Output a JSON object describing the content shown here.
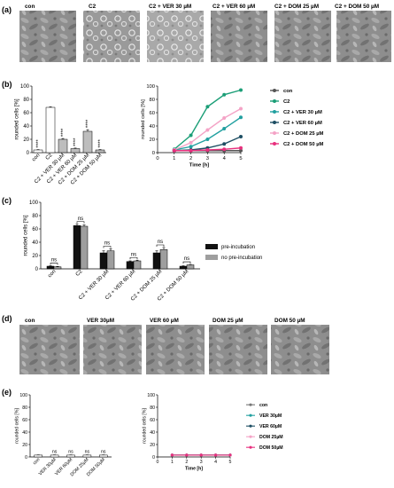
{
  "figure": {
    "panels": {
      "a": {
        "tag": "(a)",
        "captions": [
          "con",
          "C2",
          "C2 + VER 30 µM",
          "C2 + VER 60 µM",
          "C2 + DOM 25 µM",
          "C2 + DOM 50 µM"
        ]
      },
      "b": {
        "tag": "(b)"
      },
      "c": {
        "tag": "(c)"
      },
      "d": {
        "tag": "(d)",
        "captions": [
          "con",
          "VER 30µM",
          "VER 60 µM",
          "DOM 25 µM",
          "DOM 50 µM"
        ]
      },
      "e": {
        "tag": "(e)"
      }
    }
  },
  "chart_data": [
    {
      "id": "b-bar",
      "type": "bar",
      "ylabel": "rounded cells [%]",
      "ylim": [
        0,
        100
      ],
      "yticks": [
        0,
        20,
        40,
        60,
        80,
        100
      ],
      "categories": [
        "con",
        "C2",
        "C2 + VER 30 µM",
        "C2 + VER 60 µM",
        "C2 + DOM 25 µM",
        "C2 + DOM 50 µM"
      ],
      "values": [
        4,
        68,
        20,
        6,
        32,
        4
      ],
      "errors": [
        0.5,
        0.8,
        1.2,
        0.8,
        2.5,
        0.6
      ],
      "colors": [
        "#ffffff",
        "#ffffff",
        "#bdbdbd",
        "#bdbdbd",
        "#bdbdbd",
        "#bdbdbd"
      ],
      "significance": [
        "****",
        "",
        "****",
        "****",
        "****",
        "****"
      ]
    },
    {
      "id": "b-line",
      "type": "line",
      "xlabel": "Time [h]",
      "ylabel": "rounded cells [%]",
      "xlim": [
        0,
        5
      ],
      "xticks": [
        0,
        1,
        2,
        3,
        4,
        5
      ],
      "ylim": [
        0,
        100
      ],
      "yticks": [
        0,
        20,
        40,
        60,
        80,
        100
      ],
      "x": [
        1,
        2,
        3,
        4,
        5
      ],
      "series": [
        {
          "name": "con",
          "color": "#555555",
          "values": [
            3,
            3,
            3,
            3,
            3
          ]
        },
        {
          "name": "C2",
          "color": "#1b9e77",
          "values": [
            5,
            26,
            69,
            87,
            94
          ]
        },
        {
          "name": "C2 + VER 30 µM",
          "color": "#21a0a0",
          "values": [
            4,
            9,
            20,
            36,
            53
          ]
        },
        {
          "name": "C2 + VER 60 µM",
          "color": "#1d4e63",
          "values": [
            3,
            4,
            7,
            13,
            24
          ]
        },
        {
          "name": "C2 + DOM 25 µM",
          "color": "#f4a3c6",
          "values": [
            4,
            15,
            34,
            52,
            66
          ]
        },
        {
          "name": "C2 + DOM 50 µM",
          "color": "#e8307e",
          "values": [
            3,
            3,
            4,
            5,
            7
          ]
        }
      ]
    },
    {
      "id": "c-bar",
      "type": "bar",
      "ylabel": "rounded cells [%]",
      "ylim": [
        0,
        100
      ],
      "yticks": [
        0,
        20,
        40,
        60,
        80,
        100
      ],
      "categories": [
        "con",
        "C2",
        "C2 + VER 30 µM",
        "C2 + VER 60 µM",
        "C2 + DOM 25 µM",
        "C2 + DOM 50 µM"
      ],
      "series": [
        {
          "name": "pre-incubation",
          "color": "#111111",
          "values": [
            4,
            65,
            24,
            11,
            24,
            4
          ],
          "errors": [
            0.6,
            2,
            3,
            1,
            3,
            0.6
          ]
        },
        {
          "name": "no pre-incubation",
          "color": "#9e9e9e",
          "values": [
            3,
            64,
            27,
            12,
            29,
            6
          ],
          "errors": [
            0.6,
            2,
            3,
            1,
            3,
            0.6
          ]
        }
      ],
      "significance": [
        "ns",
        "ns",
        "ns",
        "ns",
        "ns",
        "ns"
      ]
    },
    {
      "id": "e-bar",
      "type": "bar",
      "ylabel": "rounded cells [%]",
      "ylim": [
        0,
        100
      ],
      "yticks": [
        0,
        20,
        40,
        60,
        80,
        100
      ],
      "categories": [
        "con",
        "VER 30µM",
        "VER 60µM",
        "DOM 25µM",
        "DOM 50µM"
      ],
      "values": [
        3,
        3,
        3,
        3,
        3
      ],
      "errors": [
        0.3,
        0.3,
        0.3,
        0.3,
        0.3
      ],
      "colors": [
        "#ffffff",
        "#ffffff",
        "#ffffff",
        "#ffffff",
        "#ffffff"
      ],
      "significance": [
        "",
        "ns",
        "ns",
        "ns",
        "ns"
      ]
    },
    {
      "id": "e-line",
      "type": "line",
      "xlabel": "Time [h]",
      "ylabel": "rounded cells [%]",
      "xlim": [
        0,
        5
      ],
      "xticks": [
        0,
        1,
        2,
        3,
        4,
        5
      ],
      "ylim": [
        0,
        100
      ],
      "yticks": [
        0,
        20,
        40,
        60,
        80,
        100
      ],
      "x": [
        1,
        2,
        3,
        4,
        5
      ],
      "series": [
        {
          "name": "con",
          "color": "#777777",
          "values": [
            3,
            3,
            3,
            3,
            3
          ]
        },
        {
          "name": "VER 30µM",
          "color": "#21a0a0",
          "values": [
            3,
            3,
            3,
            3,
            3
          ]
        },
        {
          "name": "VER 60µM",
          "color": "#1d4e63",
          "values": [
            3,
            3,
            3,
            3,
            3
          ]
        },
        {
          "name": "DOM 25µM",
          "color": "#f4a3c6",
          "values": [
            3,
            3,
            3,
            3,
            3
          ]
        },
        {
          "name": "DOM 50µM",
          "color": "#e8307e",
          "values": [
            3,
            3,
            3,
            3,
            3
          ]
        }
      ]
    }
  ]
}
